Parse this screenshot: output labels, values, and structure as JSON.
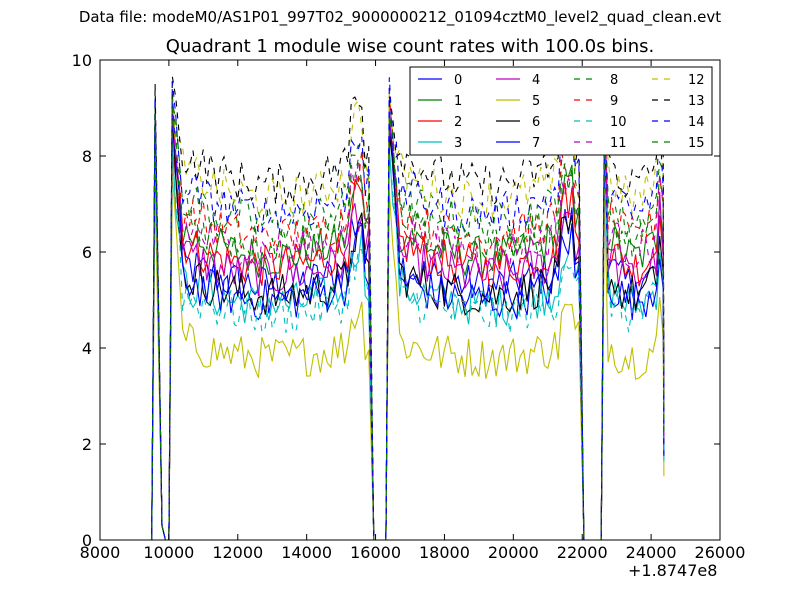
{
  "figure": {
    "suptitle": "Data file: modeM0/AS1P01_997T02_9000000212_01094cztM0_level2_quad_clean.evt",
    "offset_text": "+1.8747e8"
  },
  "colors": [
    "#0000ff",
    "#008000",
    "#ff0000",
    "#00bfbf",
    "#bf00bf",
    "#bfbf00",
    "#000000",
    "#0000ff",
    "#008000",
    "#ff0000",
    "#00bfbf",
    "#bf00bf",
    "#bfbf00",
    "#000000",
    "#0000ff",
    "#008000"
  ],
  "chart_data": {
    "type": "line",
    "title": "Quadrant 1 module wise count rates with 100.0s bins.",
    "xlabel": "",
    "ylabel": "",
    "xlim": [
      8000,
      26000
    ],
    "ylim": [
      0,
      10
    ],
    "x_ticks": [
      8000,
      10000,
      12000,
      14000,
      16000,
      18000,
      20000,
      22000,
      24000,
      26000
    ],
    "y_ticks": [
      0,
      2,
      4,
      6,
      8,
      10
    ],
    "x_offset": 187470000,
    "legend_position": "top-right",
    "legend_columns": 4,
    "grid": false,
    "orbit_segments": [
      {
        "start": 9600,
        "end": 9800
      },
      {
        "start": 10100,
        "end": 15850
      },
      {
        "start": 16400,
        "end": 21950
      },
      {
        "start": 22650,
        "end": 24350
      }
    ],
    "series": [
      {
        "name": "0",
        "style": "solid",
        "mean": 5.3,
        "peak": 9.2
      },
      {
        "name": "1",
        "style": "solid",
        "mean": 5.9,
        "peak": 8.9
      },
      {
        "name": "2",
        "style": "solid",
        "mean": 5.7,
        "peak": 8.4
      },
      {
        "name": "3",
        "style": "solid",
        "mean": 4.9,
        "peak": 8.0
      },
      {
        "name": "4",
        "style": "solid",
        "mean": 5.5,
        "peak": 8.6
      },
      {
        "name": "5",
        "style": "solid",
        "mean": 3.8,
        "peak": 7.3
      },
      {
        "name": "6",
        "style": "solid",
        "mean": 5.1,
        "peak": 8.7
      },
      {
        "name": "7",
        "style": "solid",
        "mean": 5.0,
        "peak": 8.8
      },
      {
        "name": "8",
        "style": "dashed",
        "mean": 6.6,
        "peak": 9.0
      },
      {
        "name": "9",
        "style": "dashed",
        "mean": 6.3,
        "peak": 8.9
      },
      {
        "name": "10",
        "style": "dashed",
        "mean": 4.7,
        "peak": 8.1
      },
      {
        "name": "11",
        "style": "dashed",
        "mean": 6.0,
        "peak": 8.8
      },
      {
        "name": "12",
        "style": "dashed",
        "mean": 7.1,
        "peak": 9.1
      },
      {
        "name": "13",
        "style": "dashed",
        "mean": 7.4,
        "peak": 9.5
      },
      {
        "name": "14",
        "style": "dashed",
        "mean": 6.8,
        "peak": 9.2
      },
      {
        "name": "15",
        "style": "dashed",
        "mean": 6.2,
        "peak": 8.9
      }
    ]
  }
}
